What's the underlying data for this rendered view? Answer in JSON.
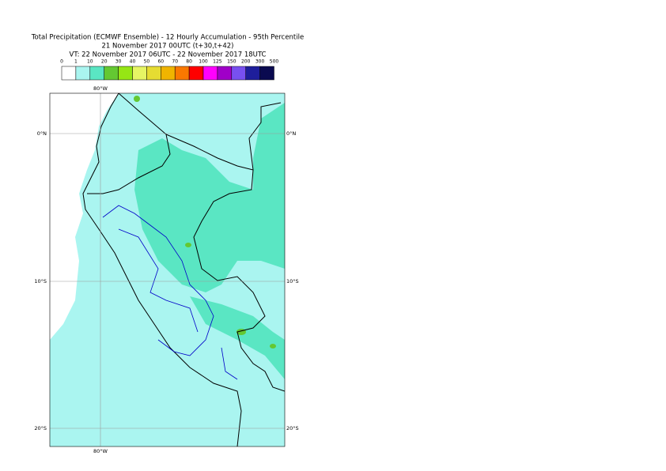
{
  "title": [
    "Total Precipitation (ECMWF Ensemble) - 12 Hourly Accumulation - 95th Percentile",
    "21 November 2017 00UTC (t+30,t+42)",
    "VT: 22 November 2017 06UTC - 22 November 2017 18UTC"
  ],
  "legend": {
    "labels": [
      "0",
      "1",
      "10",
      "20",
      "30",
      "40",
      "50",
      "60",
      "70",
      "80",
      "100",
      "125",
      "150",
      "200",
      "300",
      "500"
    ],
    "colors": [
      "#ffffff",
      "#aaf5f0",
      "#5ae6c3",
      "#64c832",
      "#96e614",
      "#e6f564",
      "#e6dc32",
      "#f0b400",
      "#fa7800",
      "#ff0000",
      "#ff00ff",
      "#a000c8",
      "#7850f0",
      "#1e1e9b",
      "#0a0a50"
    ]
  },
  "map": {
    "lon_labels": [
      "80°W"
    ],
    "lat_labels": [
      "0°N",
      "10°S",
      "20°S"
    ]
  }
}
